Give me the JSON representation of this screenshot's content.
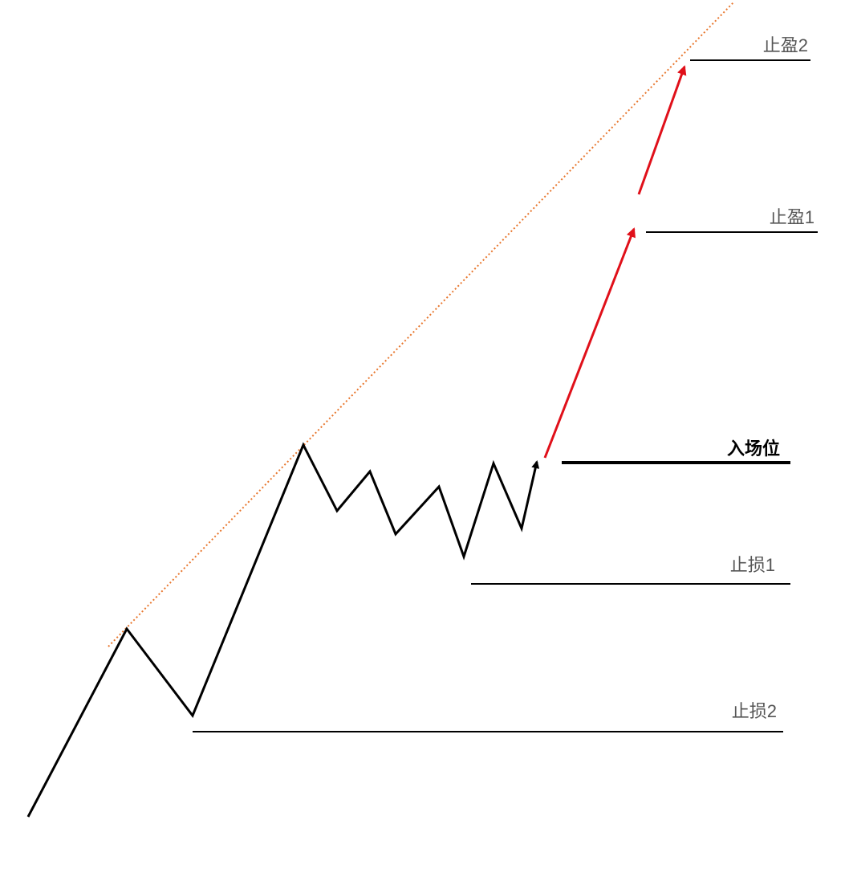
{
  "levels": {
    "take_profit_2": "止盈2",
    "take_profit_1": "止盈1",
    "entry": "入场位",
    "stop_loss_1": "止损1",
    "stop_loss_2": "止损2"
  },
  "colors": {
    "price_path": "#000000",
    "projection_arrow": "#e0101a",
    "trendline": "#e8772e",
    "level_line": "#000000",
    "label_text": "#555555",
    "entry_label_text": "#000000"
  }
}
